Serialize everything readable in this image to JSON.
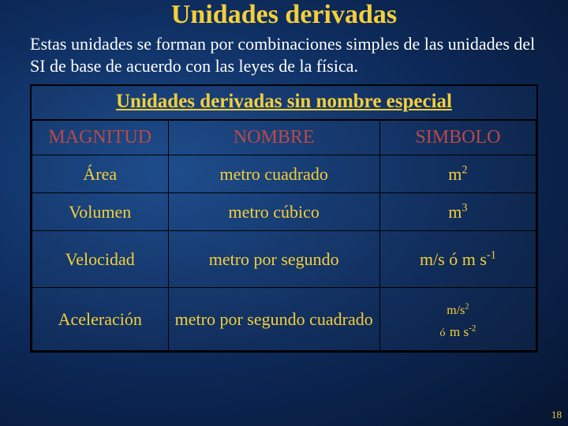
{
  "title": {
    "text": "Unidades derivadas",
    "color": "#f4cf3a",
    "fontsize": 34
  },
  "subtitle": {
    "text": "Estas unidades se forman por combinaciones simples de las unidades del SI de base de acuerdo con las leyes de la física.",
    "color": "#ffffff",
    "fontsize": 22
  },
  "table": {
    "caption": {
      "text": "Unidades derivadas sin nombre especial",
      "color": "#f4cf3a",
      "fontsize": 25
    },
    "header_color": "#b94a4a",
    "header_fontsize": 24,
    "cell_color": "#f4cf3a",
    "cell_fontsize": 22,
    "col_widths": [
      "27%",
      "42%",
      "31%"
    ],
    "row_heights": [
      "44px",
      "48px",
      "48px",
      "72px",
      "80px"
    ],
    "columns": [
      "MAGNITUD",
      "NOMBRE",
      "SIMBOLO"
    ],
    "rows": [
      {
        "magnitud": "Área",
        "nombre": "metro cuadrado",
        "simbolo_html": "m<span class='sup'>2</span>"
      },
      {
        "magnitud": "Volumen",
        "nombre": "metro cúbico",
        "simbolo_html": "m<span class='sup'>3</span>"
      },
      {
        "magnitud": "Velocidad",
        "nombre": "metro por segundo",
        "simbolo_html": "m/s  ó m s<span class='sup'>-1</span>"
      },
      {
        "magnitud": "Aceleración",
        "nombre": "metro por segundo cuadrado",
        "simbolo_html": "<span style='font-size:16px'>m/s<span class=\"sup\">2</span></span><br><span style='font-size:14px'>ó</span> <span style='font-size:17px'>m s<span class=\"sup\">-2</span></span>"
      }
    ]
  },
  "page_number": {
    "text": "18",
    "color": "#f4cf3a"
  }
}
